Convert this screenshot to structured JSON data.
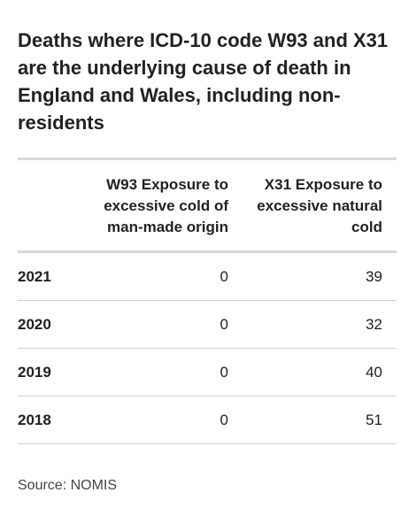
{
  "header": {
    "title": "Deaths where ICD-10 code W93 and X31 are the underlying cause of death in England and Wales, including non-residents"
  },
  "table": {
    "columns": [
      "",
      "W93 Exposure to excessive cold of man-made origin",
      "X31 Exposure to excessive natural cold"
    ],
    "rows": [
      [
        "2021",
        0,
        39
      ],
      [
        "2020",
        0,
        32
      ],
      [
        "2019",
        0,
        40
      ],
      [
        "2018",
        0,
        51
      ]
    ]
  },
  "footer": {
    "source": "Source: NOMIS"
  }
}
